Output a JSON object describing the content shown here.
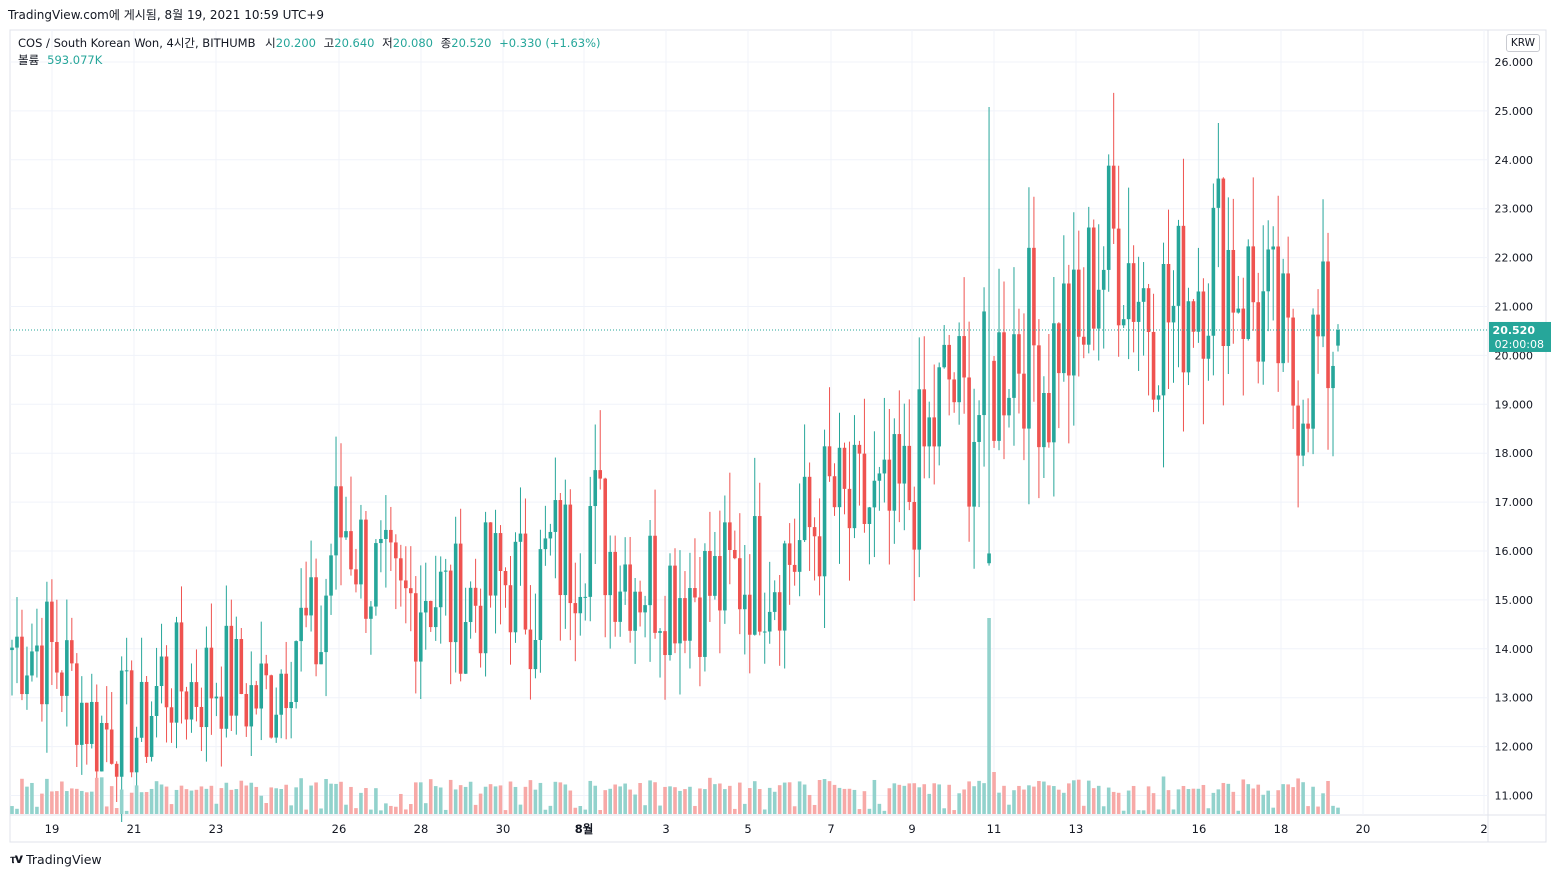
{
  "header": {
    "caption": "TradingView.com에 게시됨, 8월 19, 2021 10:59 UTC+9"
  },
  "legend": {
    "symbol": "COS / South Korean Won, 4시간, BITHUMB",
    "open_label": "시",
    "open": "20.200",
    "high_label": "고",
    "high": "20.640",
    "low_label": "저",
    "low": "20.080",
    "close_label": "종",
    "close": "20.520",
    "change": "+0.330 (+1.63%)",
    "volume_label": "볼륨",
    "volume": "593.077K"
  },
  "currency_button": "KRW",
  "footer": {
    "logo_text": "TradingView",
    "logo_icon": "tradingview-logo-icon"
  },
  "colors": {
    "up": "#26a69a",
    "down": "#ef5350",
    "up_volume": "#92d2cc",
    "down_volume": "#f7a9a7",
    "grid": "#f0f3fa"
  },
  "chart_data": {
    "type": "candlestick",
    "price_axis_ticks": [
      "26.000",
      "25.000",
      "24.000",
      "23.000",
      "22.000",
      "21.000",
      "20.000",
      "19.000",
      "18.000",
      "17.000",
      "16.000",
      "15.000",
      "14.000",
      "13.000",
      "12.000",
      "11.000"
    ],
    "y_range": [
      10.6,
      26.2
    ],
    "x_ticks": [
      "19",
      "21",
      "23",
      "26",
      "28",
      "30",
      "8월",
      "3",
      "5",
      "7",
      "9",
      "11",
      "13",
      "16",
      "18",
      "20",
      "2"
    ],
    "current_price": "20.520",
    "countdown": "02:00:08",
    "spike_candle": {
      "open": 15.75,
      "high": 25.08,
      "low": 15.7,
      "close": 15.95
    },
    "waypoints": [
      [
        14.05,
        0
      ],
      [
        14.15,
        3
      ],
      [
        13.9,
        8
      ],
      [
        13.3,
        12
      ],
      [
        12.3,
        17
      ],
      [
        12.5,
        22
      ],
      [
        12.25,
        26
      ],
      [
        13.4,
        30
      ],
      [
        13.2,
        36
      ],
      [
        13.45,
        42
      ],
      [
        13.0,
        48
      ],
      [
        13.1,
        52
      ],
      [
        14.4,
        57
      ],
      [
        14.1,
        62
      ],
      [
        16.1,
        64
      ],
      [
        16.6,
        67
      ],
      [
        15.9,
        70
      ],
      [
        15.2,
        74
      ],
      [
        14.7,
        78
      ],
      [
        15.4,
        83
      ],
      [
        14.8,
        88
      ],
      [
        15.1,
        94
      ],
      [
        15.45,
        100
      ],
      [
        14.95,
        104
      ],
      [
        15.9,
        108
      ],
      [
        15.95,
        112
      ],
      [
        16.8,
        116
      ],
      [
        16.0,
        120
      ],
      [
        15.6,
        125
      ],
      [
        15.35,
        130
      ],
      [
        15.3,
        137
      ],
      [
        15.2,
        141
      ],
      [
        15.5,
        146
      ],
      [
        15.6,
        150
      ],
      [
        15.95,
        157
      ],
      [
        16.4,
        160
      ],
      [
        17.0,
        164
      ],
      [
        16.6,
        168
      ],
      [
        16.9,
        172
      ],
      [
        16.55,
        175
      ],
      [
        17.2,
        180
      ],
      [
        18.2,
        184
      ],
      [
        19.5,
        188
      ],
      [
        18.5,
        192
      ],
      [
        19.3,
        196
      ],
      [
        20.3,
        200
      ],
      [
        20.4,
        204
      ],
      [
        19.4,
        208
      ],
      [
        20.7,
        210
      ],
      [
        20.0,
        214
      ],
      [
        21.9,
        217
      ],
      [
        22.4,
        222
      ],
      [
        21.5,
        226
      ],
      [
        21.0,
        229
      ],
      [
        20.8,
        233
      ],
      [
        21.5,
        236
      ],
      [
        21.9,
        239
      ],
      [
        22.2,
        243
      ],
      [
        21.6,
        246
      ],
      [
        20.8,
        251
      ],
      [
        20.3,
        254
      ],
      [
        19.3,
        257
      ],
      [
        19.9,
        260
      ],
      [
        20.2,
        264
      ],
      [
        20.52,
        266
      ]
    ],
    "spike_index": 196,
    "volume_spike_index": 196,
    "candle_count": 267
  }
}
